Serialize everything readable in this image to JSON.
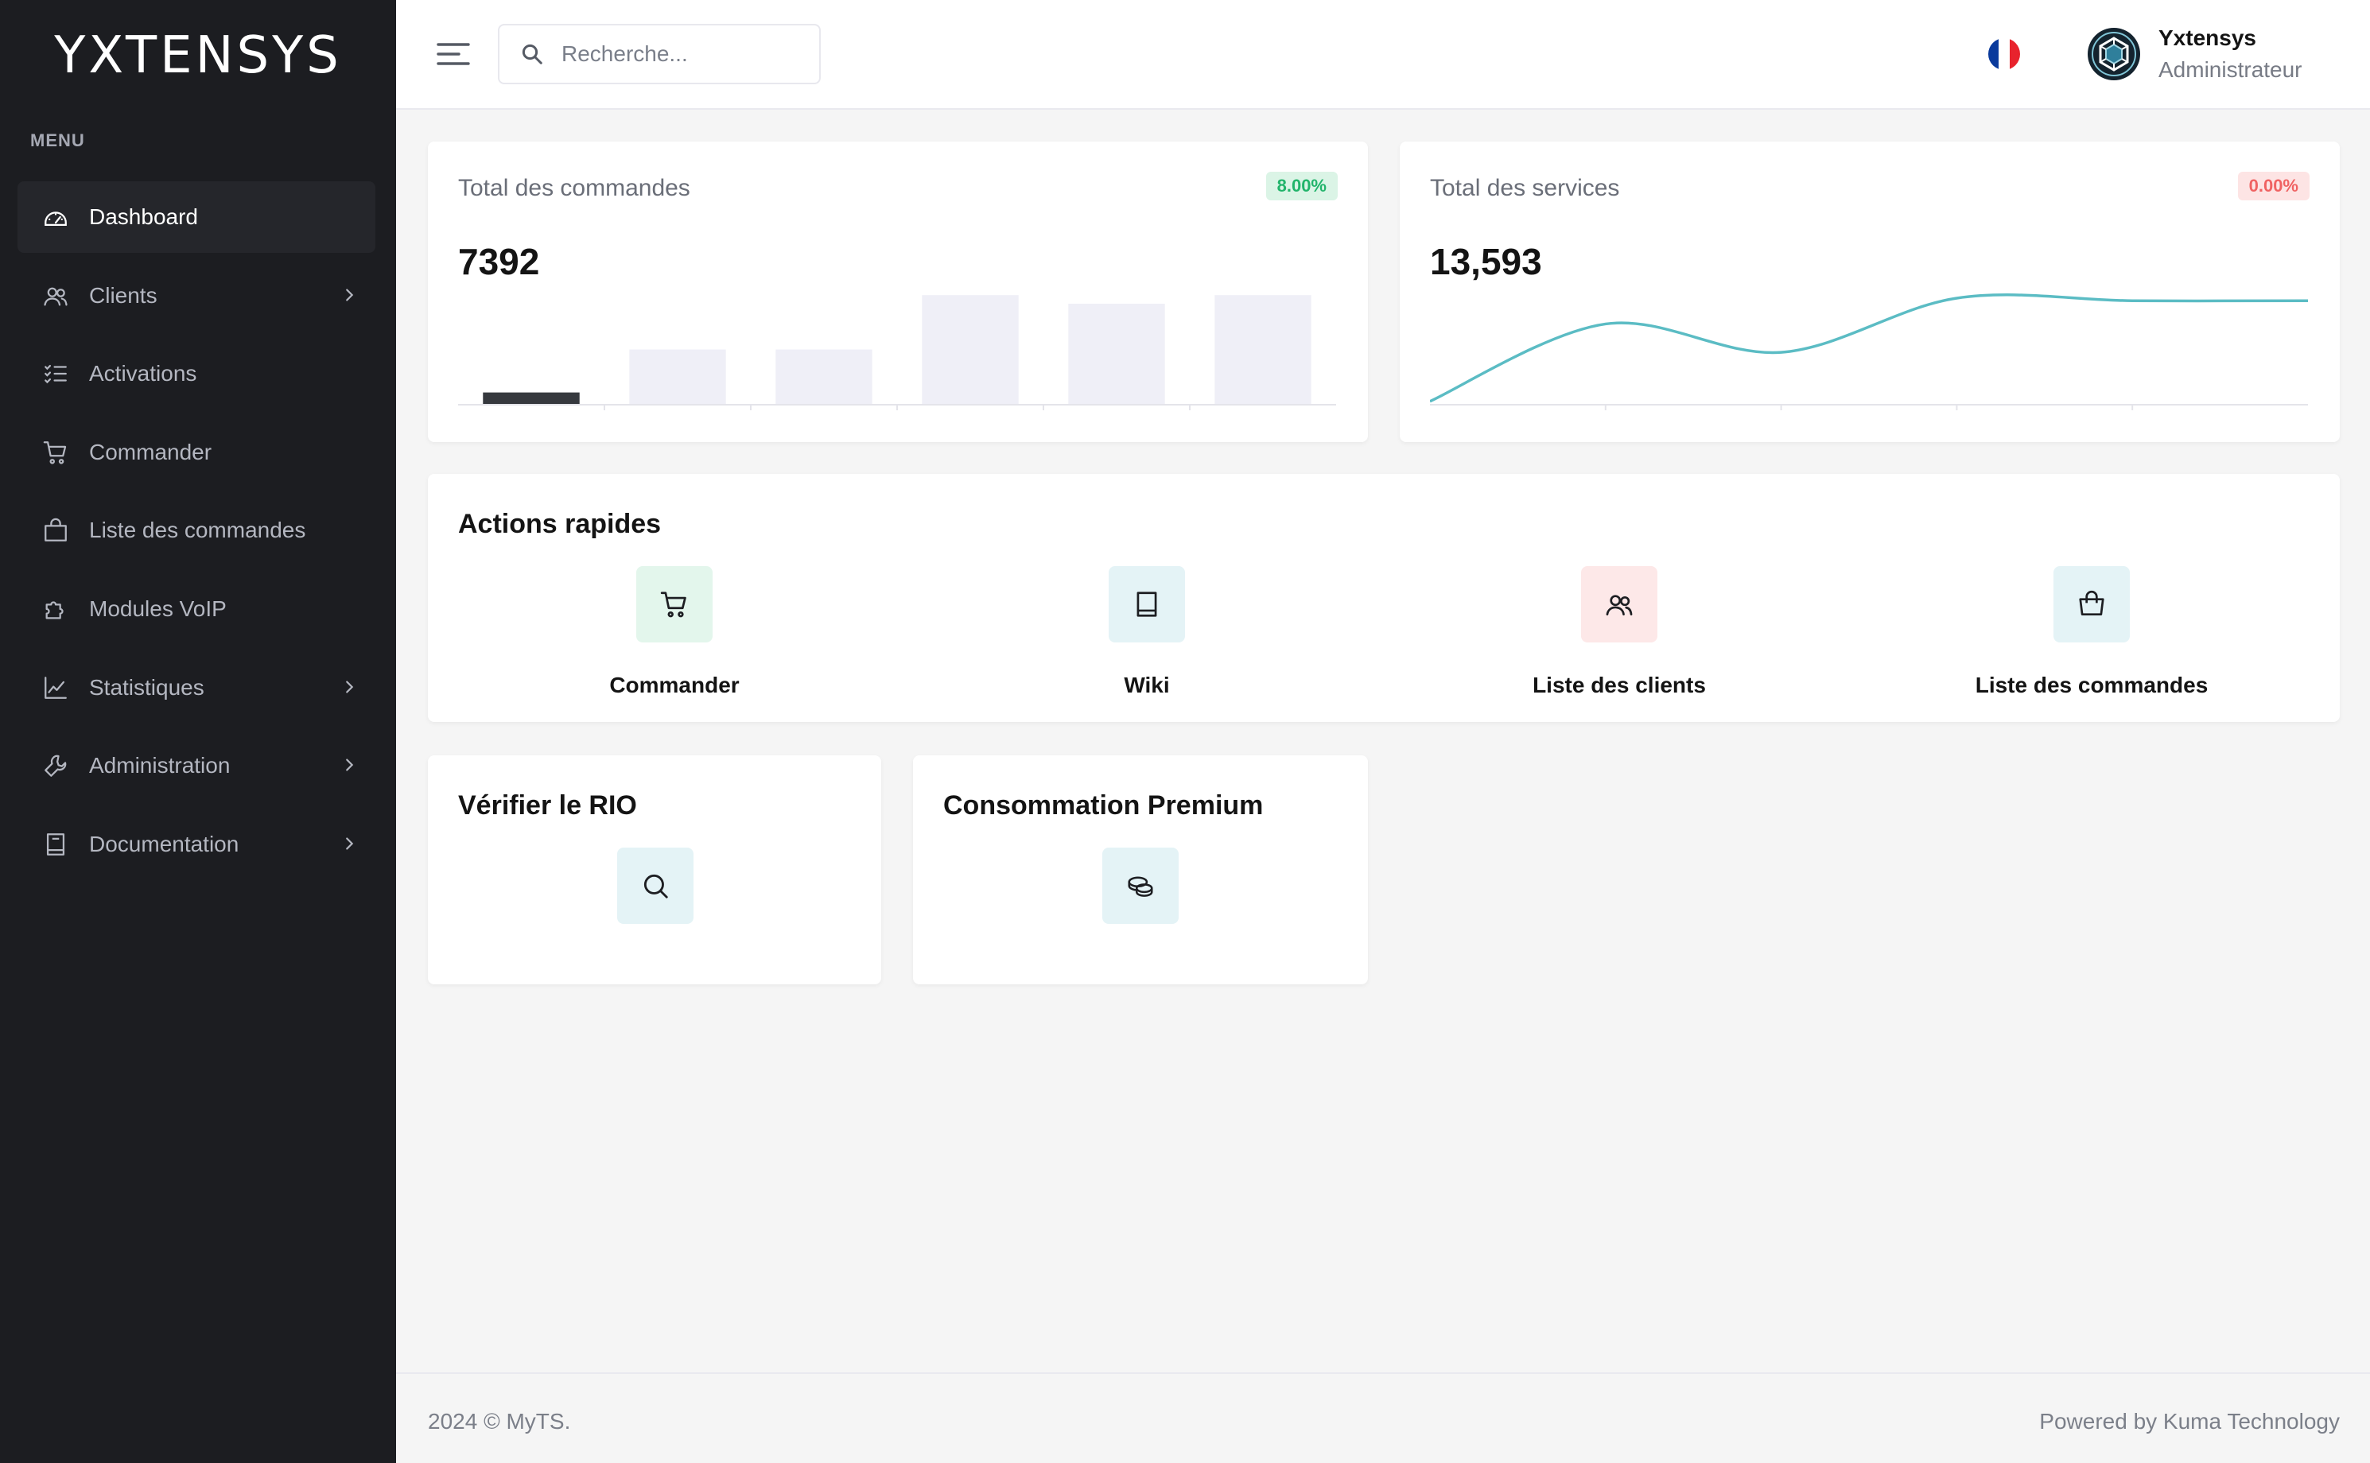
{
  "brand": {
    "logo_text": "YXTENSYS"
  },
  "sidebar": {
    "menu_title": "MENU",
    "items": [
      {
        "label": "Dashboard",
        "icon": "dashboard-icon",
        "active": true,
        "has_children": false
      },
      {
        "label": "Clients",
        "icon": "users-icon",
        "active": false,
        "has_children": true
      },
      {
        "label": "Activations",
        "icon": "checklist-icon",
        "active": false,
        "has_children": false
      },
      {
        "label": "Commander",
        "icon": "cart-icon",
        "active": false,
        "has_children": false
      },
      {
        "label": "Liste des commandes",
        "icon": "shopping-bag-icon",
        "active": false,
        "has_children": false
      },
      {
        "label": "Modules VoIP",
        "icon": "puzzle-icon",
        "active": false,
        "has_children": false
      },
      {
        "label": "Statistiques",
        "icon": "chart-line-icon",
        "active": false,
        "has_children": true
      },
      {
        "label": "Administration",
        "icon": "wrench-icon",
        "active": false,
        "has_children": true
      },
      {
        "label": "Documentation",
        "icon": "book-icon",
        "active": false,
        "has_children": true
      }
    ]
  },
  "topbar": {
    "search_placeholder": "Recherche...",
    "language_flag": "fr-flag-icon",
    "user": {
      "name": "Yxtensys",
      "role": "Administrateur"
    }
  },
  "stats": {
    "orders": {
      "label": "Total des commandes",
      "value": "7392",
      "badge": "8.00%",
      "badge_color": "#22b46b"
    },
    "services": {
      "label": "Total des services",
      "value": "13,593",
      "badge": "0.00%",
      "badge_color": "#f06262"
    }
  },
  "chart_data": [
    {
      "type": "bar",
      "title": "",
      "categories": [
        "1",
        "2",
        "3",
        "4",
        "5",
        "6"
      ],
      "values": [
        8,
        38,
        38,
        76,
        70,
        76
      ],
      "ylim": [
        0,
        80
      ],
      "highlight_index": 0,
      "colors": {
        "highlight": "#36393e",
        "default": "#efeff7"
      },
      "grid": false
    },
    {
      "type": "line",
      "title": "",
      "x": [
        0,
        1,
        2,
        3,
        4,
        5
      ],
      "y": [
        2,
        62,
        40,
        82,
        80,
        80
      ],
      "ylim": [
        0,
        90
      ],
      "color": "#5bbcc4",
      "smooth": true,
      "grid": false
    }
  ],
  "quick_actions": {
    "title": "Actions rapides",
    "items": [
      {
        "label": "Commander",
        "icon": "cart-icon",
        "bg": "#e3f6ec"
      },
      {
        "label": "Wiki",
        "icon": "book-icon",
        "bg": "#e4f3f6"
      },
      {
        "label": "Liste des clients",
        "icon": "users-icon",
        "bg": "#fde8e8"
      },
      {
        "label": "Liste des commandes",
        "icon": "shopping-bag-icon",
        "bg": "#e4f3f6"
      }
    ]
  },
  "tools": {
    "rio": {
      "title": "Vérifier le RIO",
      "icon": "search-icon"
    },
    "premium": {
      "title": "Consommation Premium",
      "icon": "coins-icon"
    }
  },
  "footer": {
    "left": "2024 © MyTS.",
    "right": "Powered by Kuma Technology"
  }
}
